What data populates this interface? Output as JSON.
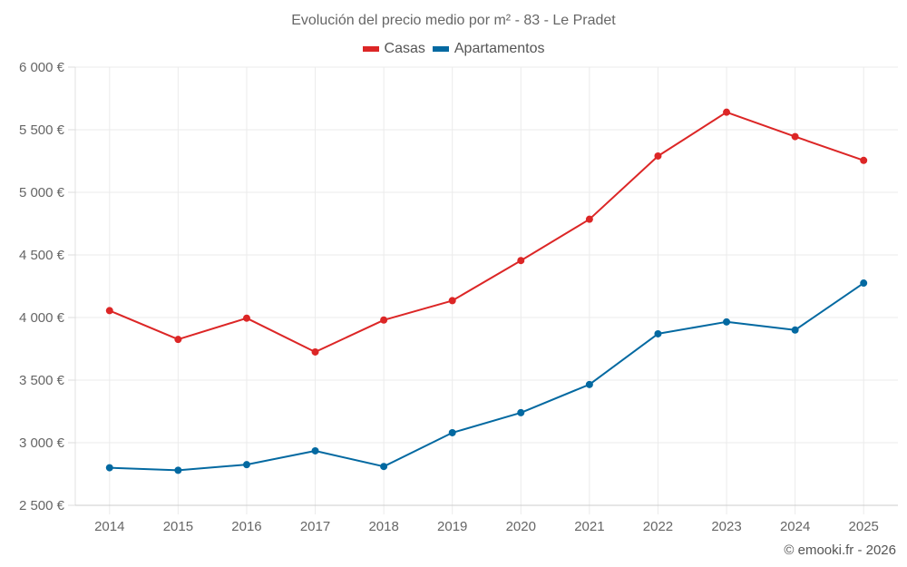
{
  "title": "Evolución del precio medio por m² - 83 - Le Pradet",
  "footer": "© emooki.fr - 2026",
  "legend": [
    {
      "name": "Casas",
      "color": "#dc2626"
    },
    {
      "name": "Apartamentos",
      "color": "#0369a1"
    }
  ],
  "chart_data": {
    "type": "line",
    "title": "Evolución del precio medio por m² - 83 - Le Pradet",
    "xlabel": "",
    "ylabel": "",
    "x": [
      "2014",
      "2015",
      "2016",
      "2017",
      "2018",
      "2019",
      "2020",
      "2021",
      "2022",
      "2023",
      "2024",
      "2025"
    ],
    "ylim": [
      2500,
      6000
    ],
    "yticks": [
      2500,
      3000,
      3500,
      4000,
      4500,
      5000,
      5500,
      6000
    ],
    "ytick_labels": [
      "2 500 €",
      "3 000 €",
      "3 500 €",
      "4 000 €",
      "4 500 €",
      "5 000 €",
      "5 500 €",
      "6 000 €"
    ],
    "grid": true,
    "legend_position": "top-center",
    "series": [
      {
        "name": "Casas",
        "color": "#dc2626",
        "values": [
          4055,
          3825,
          3995,
          3725,
          3980,
          4135,
          4455,
          4785,
          5290,
          5640,
          5445,
          5255
        ]
      },
      {
        "name": "Apartamentos",
        "color": "#0369a1",
        "values": [
          2800,
          2780,
          2825,
          2935,
          2810,
          3080,
          3240,
          3465,
          3870,
          3965,
          3900,
          4275
        ]
      }
    ]
  }
}
